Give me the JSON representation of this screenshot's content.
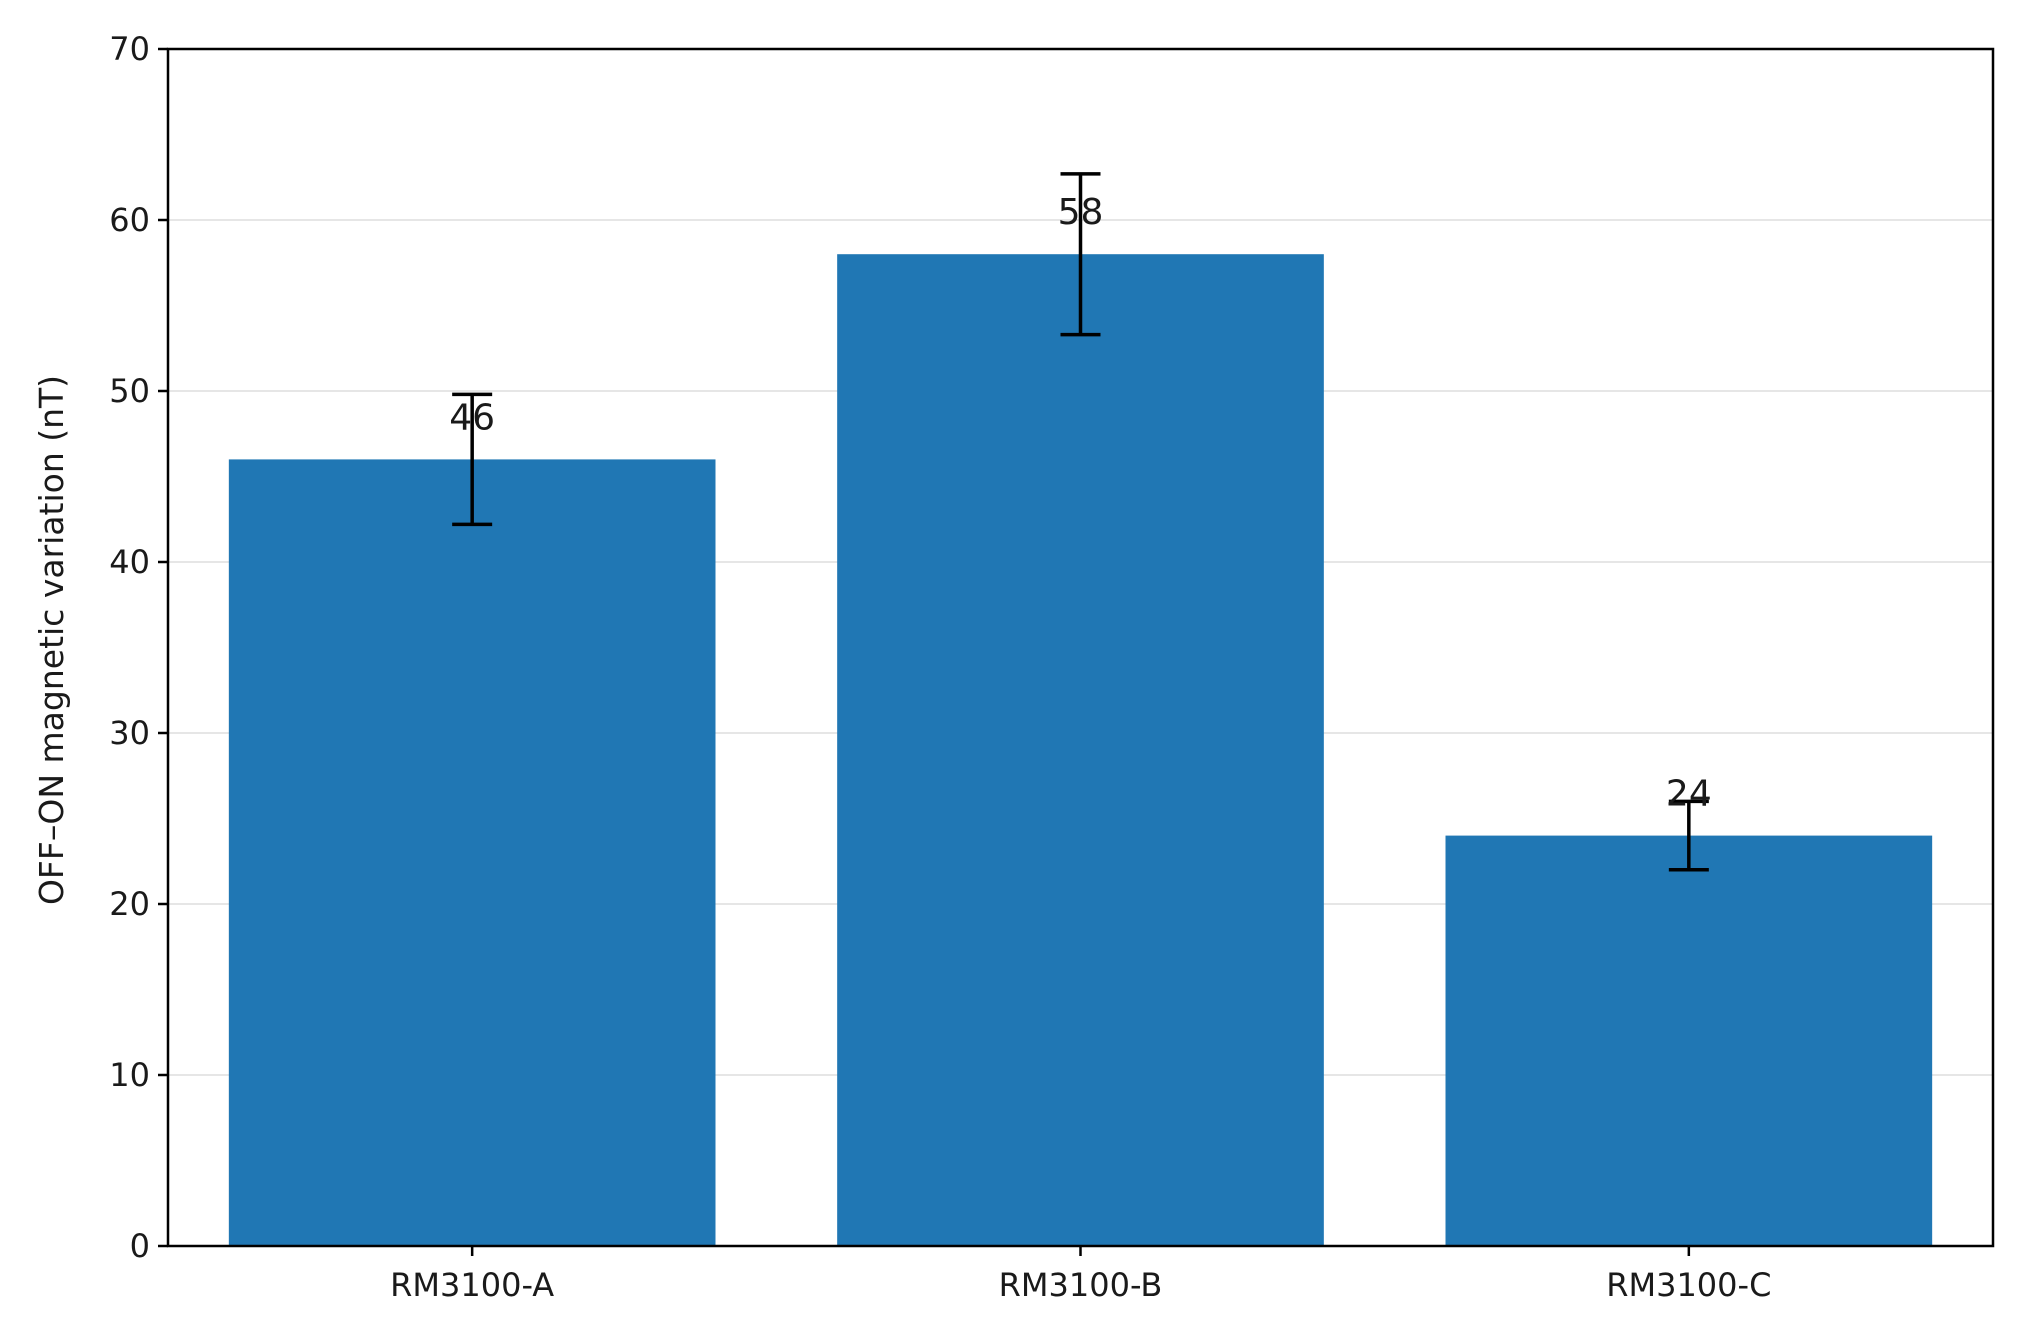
{
  "chart_data": {
    "type": "bar",
    "title": "",
    "xlabel": "",
    "ylabel": "OFF–ON magnetic variation (nT)",
    "categories": [
      "RM3100-A",
      "RM3100-B",
      "RM3100-C"
    ],
    "values": [
      46,
      58,
      24
    ],
    "error": [
      3.8,
      4.7,
      2.0
    ],
    "data_labels": [
      "46",
      "58",
      "24"
    ],
    "ylim": [
      0,
      70
    ],
    "yticks": [
      0,
      10,
      20,
      30,
      40,
      50,
      60,
      70
    ],
    "grid": "horizontal",
    "legend": "none",
    "colors": {
      "bar": "#2077b4",
      "error_bar": "#000000",
      "grid": "#e6e6e6",
      "axis": "#000000"
    }
  }
}
